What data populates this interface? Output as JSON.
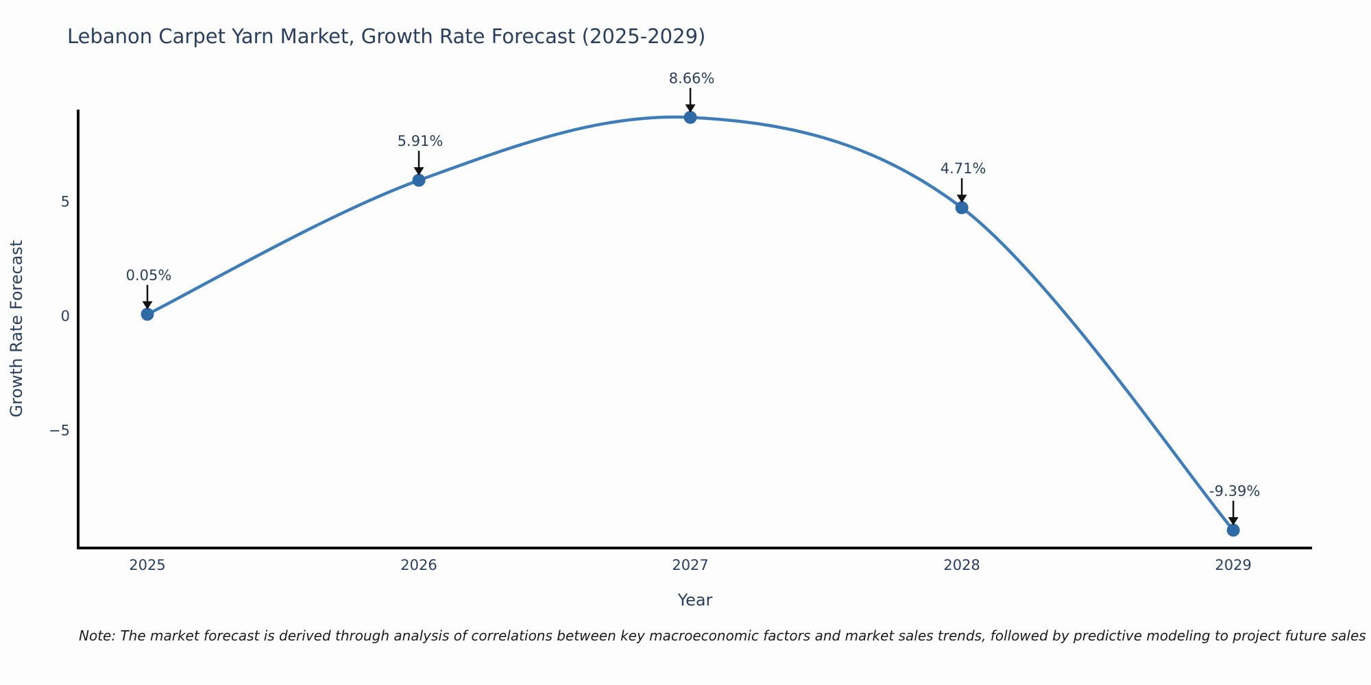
{
  "figure": {
    "title": "Lebanon Carpet Yarn Market, Growth Rate Forecast (2025-2029)",
    "note": "Note: The market forecast is derived through analysis of correlations between key macroeconomic factors and market sales trends, followed by predictive modeling to project future sales"
  },
  "chart_data": {
    "type": "line",
    "title": "Lebanon Carpet Yarn Market, Growth Rate Forecast (2025-2029)",
    "xlabel": "Year",
    "ylabel": "Growth Rate Forecast",
    "x": [
      2025,
      2026,
      2027,
      2028,
      2029
    ],
    "values": [
      0.05,
      5.91,
      8.66,
      4.71,
      -9.39
    ],
    "point_labels": [
      "0.05%",
      "5.91%",
      "8.66%",
      "4.71%",
      "-9.39%"
    ],
    "x_tick_labels": [
      "2025",
      "2026",
      "2027",
      "2028",
      "2029"
    ],
    "y_ticks": [
      5,
      0,
      -5
    ],
    "y_tick_labels": [
      "5",
      "0",
      "−5"
    ],
    "xlim": [
      2024.745,
      2029.29
    ],
    "ylim": [
      -10.17,
      9.0
    ],
    "grid": false,
    "legend_position": "none",
    "line_style": "spline",
    "annotation_style": "value-label-with-down-arrow",
    "colors": {
      "line": "#3f7db8",
      "marker": "#2e6ba6",
      "axis": "#0d0d0d",
      "tick_text": "#2a3f5f",
      "axis_title_text": "#2a3f5f",
      "annotation_text": "#2a3f5f",
      "annotation_arrow": "#111111",
      "note_text": "#1a1a1a",
      "background": "#fdfdfd"
    }
  }
}
